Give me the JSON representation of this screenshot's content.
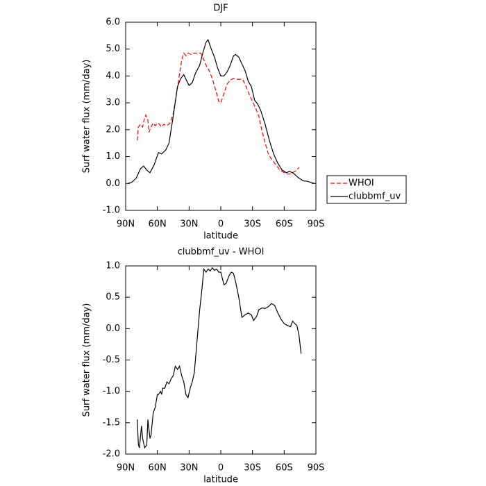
{
  "chart_data": [
    {
      "type": "line",
      "title": "DJF",
      "xlabel": "latitude",
      "ylabel": "Surf water flux (mm/day)",
      "xlim": [
        90,
        -90
      ],
      "xticks": [
        {
          "value": 90,
          "label": "90N"
        },
        {
          "value": 60,
          "label": "60N"
        },
        {
          "value": 30,
          "label": "30N"
        },
        0,
        {
          "value": -30,
          "label": "30S"
        },
        {
          "value": -60,
          "label": "60S"
        },
        {
          "value": -90,
          "label": "90S"
        }
      ],
      "ylim": [
        -1,
        6
      ],
      "yticks": [
        {
          "value": -1,
          "label": "-1.0"
        },
        {
          "value": 0,
          "label": "0.0"
        },
        {
          "value": 1,
          "label": "1.0"
        },
        {
          "value": 2,
          "label": "2.0"
        },
        {
          "value": 3,
          "label": "3.0"
        },
        {
          "value": 4,
          "label": "4.0"
        },
        {
          "value": 5,
          "label": "5.0"
        },
        {
          "value": 6,
          "label": "6.0"
        }
      ],
      "legend": "right",
      "series": [
        {
          "name": "WHOI",
          "color": "#ff0000",
          "dashed": true,
          "x": [
            79,
            78,
            76,
            74,
            72,
            71,
            69,
            68,
            66,
            64,
            62,
            60,
            58,
            56,
            54,
            51,
            48,
            45,
            42,
            39,
            37,
            35,
            33,
            31,
            28,
            25,
            22,
            19,
            17,
            14,
            11,
            8,
            5,
            2,
            0,
            -3,
            -6,
            -9,
            -12,
            -15,
            -18,
            -21,
            -24,
            -27,
            -30,
            -33,
            -36,
            -39,
            -42,
            -45,
            -48,
            -52,
            -56,
            -60,
            -63,
            -66,
            -68,
            -70,
            -72,
            -74
          ],
          "values": [
            1.6,
            2.1,
            2.2,
            2.1,
            2.45,
            2.55,
            2.35,
            1.9,
            2.1,
            2.25,
            2.15,
            2.25,
            2.2,
            2.1,
            2.2,
            2.15,
            2.25,
            2.6,
            3.3,
            4.1,
            4.6,
            4.85,
            4.75,
            4.85,
            4.8,
            4.85,
            4.85,
            4.85,
            4.7,
            4.4,
            4.2,
            3.9,
            3.5,
            3.05,
            3.0,
            3.35,
            3.7,
            3.85,
            3.9,
            3.88,
            3.88,
            3.85,
            3.6,
            3.3,
            3.05,
            2.8,
            2.5,
            1.95,
            1.5,
            1.1,
            0.9,
            0.7,
            0.5,
            0.4,
            0.35,
            0.35,
            0.4,
            0.45,
            0.5,
            0.6
          ]
        },
        {
          "name": "clubbmf_uv",
          "color": "#000000",
          "dashed": false,
          "x": [
            88,
            84,
            80,
            76,
            73,
            70,
            67,
            63,
            59,
            56,
            52,
            49,
            45,
            41,
            38,
            35,
            32,
            30,
            27,
            24,
            20,
            17,
            14,
            12,
            9,
            6,
            3,
            0,
            -3,
            -6,
            -9,
            -12,
            -14,
            -17,
            -20,
            -23,
            -26,
            -29,
            -32,
            -35,
            -38,
            -42,
            -46,
            -50,
            -54,
            -58,
            -62,
            -65,
            -68,
            -71,
            -74,
            -78,
            -82,
            -86,
            -89
          ],
          "values": [
            0.0,
            0.05,
            0.2,
            0.55,
            0.65,
            0.5,
            0.4,
            0.7,
            1.15,
            1.1,
            1.25,
            1.5,
            2.5,
            3.6,
            3.9,
            4.05,
            3.8,
            3.65,
            3.75,
            4.1,
            4.4,
            4.85,
            5.25,
            5.35,
            5.0,
            4.7,
            4.3,
            4.0,
            4.0,
            4.15,
            4.4,
            4.75,
            4.8,
            4.7,
            4.45,
            4.2,
            3.8,
            3.6,
            3.1,
            2.95,
            2.7,
            2.2,
            1.6,
            1.1,
            0.75,
            0.5,
            0.4,
            0.45,
            0.4,
            0.3,
            0.2,
            0.1,
            0.08,
            0.03,
            0.0
          ]
        }
      ]
    },
    {
      "type": "line",
      "title": "clubbmf_uv - WHOI",
      "xlabel": "latitude",
      "ylabel": "Surf water flux (mm/day)",
      "xlim": [
        90,
        -90
      ],
      "xticks": [
        {
          "value": 90,
          "label": "90N"
        },
        {
          "value": 60,
          "label": "60N"
        },
        {
          "value": 30,
          "label": "30N"
        },
        0,
        {
          "value": -30,
          "label": "30S"
        },
        {
          "value": -60,
          "label": "60S"
        },
        {
          "value": -90,
          "label": "90S"
        }
      ],
      "ylim": [
        -2,
        1
      ],
      "yticks": [
        {
          "value": -2,
          "label": "-2.0"
        },
        {
          "value": -1.5,
          "label": "-1.5"
        },
        {
          "value": -1,
          "label": "-1.0"
        },
        {
          "value": -0.5,
          "label": "-0.5"
        },
        {
          "value": 0,
          "label": "0.0"
        },
        {
          "value": 0.5,
          "label": "0.5"
        },
        {
          "value": 1,
          "label": "1.0"
        }
      ],
      "series": [
        {
          "color": "#000000",
          "dashed": false,
          "x": [
            79,
            78,
            77,
            75,
            74,
            72,
            70,
            69,
            67,
            66,
            64,
            62,
            60,
            59,
            57,
            56,
            55,
            53,
            51,
            49,
            47,
            45,
            43,
            41,
            39,
            37,
            35,
            33,
            31,
            29,
            27,
            25,
            23,
            20,
            18,
            16,
            14,
            12,
            10,
            8,
            6,
            4,
            2,
            0,
            -3,
            -5,
            -8,
            -10,
            -12,
            -14,
            -17,
            -20,
            -23,
            -26,
            -29,
            -31,
            -34,
            -36,
            -39,
            -42,
            -45,
            -48,
            -51,
            -54,
            -57,
            -60,
            -63,
            -66,
            -68,
            -70,
            -72,
            -74,
            -76
          ],
          "values": [
            -1.45,
            -1.85,
            -1.9,
            -1.55,
            -1.75,
            -1.9,
            -1.85,
            -1.45,
            -1.75,
            -1.7,
            -1.35,
            -1.25,
            -1.05,
            -1.05,
            -1.0,
            -1.05,
            -0.95,
            -0.95,
            -0.85,
            -0.88,
            -0.8,
            -0.75,
            -0.6,
            -0.65,
            -0.6,
            -0.75,
            -0.85,
            -1.05,
            -1.1,
            -0.95,
            -0.85,
            -0.7,
            -0.3,
            0.3,
            0.6,
            0.95,
            0.9,
            0.95,
            0.92,
            0.97,
            0.93,
            0.95,
            0.9,
            0.9,
            0.7,
            0.72,
            0.85,
            0.9,
            0.88,
            0.75,
            0.5,
            0.18,
            0.22,
            0.25,
            0.22,
            0.13,
            0.2,
            0.3,
            0.33,
            0.32,
            0.35,
            0.4,
            0.37,
            0.25,
            0.15,
            0.08,
            0.05,
            0.03,
            0.12,
            0.08,
            0.05,
            -0.1,
            -0.4
          ]
        }
      ]
    }
  ]
}
